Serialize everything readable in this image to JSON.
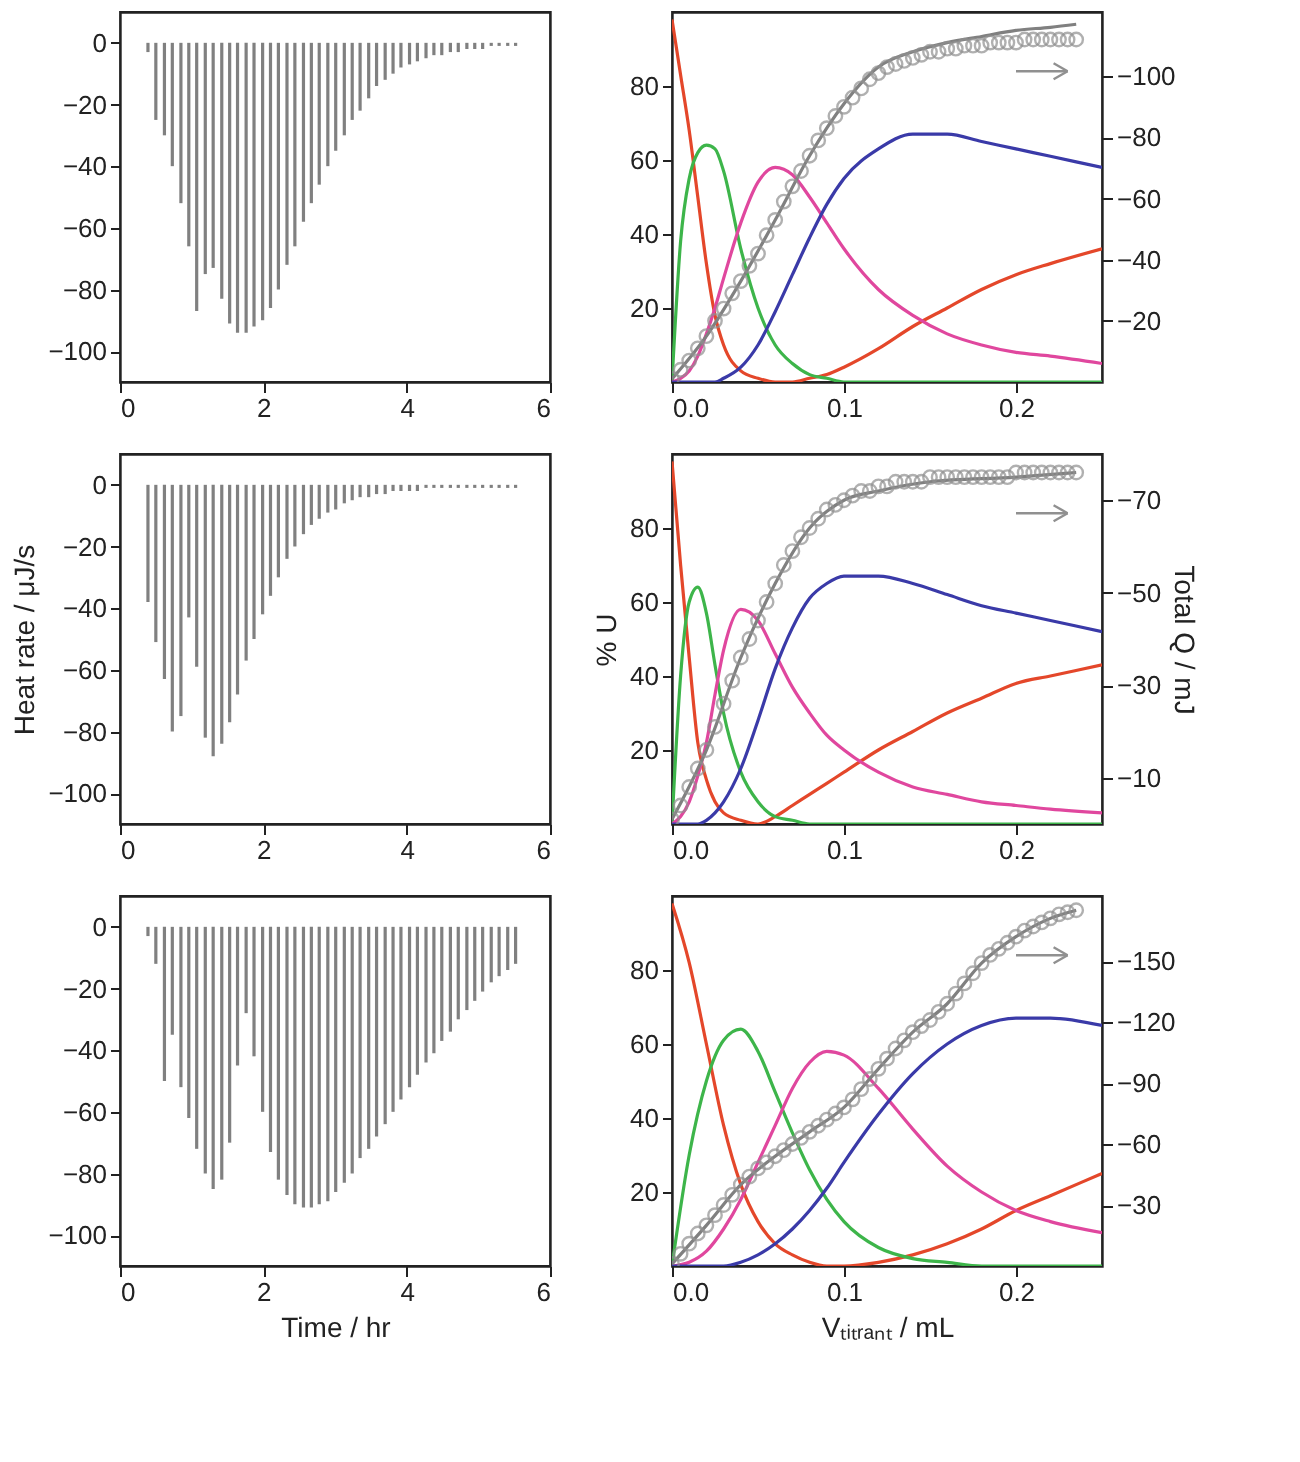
{
  "chart_data": [
    {
      "type": "bar",
      "color": "#808080",
      "xlim": [
        0,
        6
      ],
      "xticks": [
        0,
        2,
        4,
        6
      ],
      "ylim": [
        -110,
        10
      ],
      "yticks": [
        -100,
        -80,
        -60,
        -40,
        -20,
        0
      ],
      "x": [
        0.39,
        0.5,
        0.62,
        0.73,
        0.85,
        0.96,
        1.07,
        1.19,
        1.3,
        1.42,
        1.53,
        1.64,
        1.76,
        1.87,
        1.99,
        2.1,
        2.21,
        2.33,
        2.44,
        2.56,
        2.67,
        2.78,
        2.9,
        3.01,
        3.13,
        3.24,
        3.35,
        3.47,
        3.58,
        3.7,
        3.81,
        3.92,
        4.04,
        4.15,
        4.27,
        4.38,
        4.49,
        4.61,
        4.72,
        4.84,
        4.95,
        5.06,
        5.18,
        5.29,
        5.41,
        5.52
      ],
      "values": [
        -3,
        -25,
        -30,
        -40,
        -52,
        -66,
        -87,
        -75,
        -73,
        -83,
        -91,
        -94,
        -94,
        -92,
        -90,
        -86,
        -80,
        -72,
        -66,
        -58,
        -52,
        -46,
        -40,
        -35,
        -30,
        -25,
        -22,
        -18,
        -14,
        -12,
        -10,
        -8,
        -7,
        -6,
        -5,
        -4,
        -4,
        -3,
        -3,
        -2,
        -2,
        -2,
        -1,
        -1,
        -1,
        -1
      ]
    },
    {
      "type": "line",
      "xlim": [
        0,
        0.25
      ],
      "xticks": [
        {
          "value": 0,
          "label": "0.0"
        },
        {
          "value": 0.1,
          "label": "0.1"
        },
        {
          "value": 0.2,
          "label": "0.2"
        }
      ],
      "ylim": [
        0,
        100
      ],
      "yticks": [
        20,
        40,
        60,
        80
      ],
      "y2lim": [
        0,
        -121
      ],
      "y2ticks": [
        -20,
        -40,
        -60,
        -80,
        -100
      ],
      "x": [
        0,
        0.005,
        0.01,
        0.015,
        0.02,
        0.025,
        0.03,
        0.04,
        0.05,
        0.06,
        0.07,
        0.08,
        0.09,
        0.1,
        0.12,
        0.14,
        0.16,
        0.18,
        0.2,
        0.22,
        0.25
      ],
      "series": [
        {
          "color": "#e4472a",
          "values": [
            98,
            83,
            68,
            50,
            32,
            18,
            10,
            3,
            1,
            0,
            0,
            1,
            2,
            4,
            9,
            15,
            20,
            25,
            29,
            32,
            36
          ]
        },
        {
          "color": "#3db54a",
          "values": [
            0,
            38,
            55,
            62,
            64,
            63,
            57,
            36,
            20,
            10,
            5,
            2,
            1,
            0,
            0,
            0,
            0,
            0,
            0,
            0,
            0
          ]
        },
        {
          "color": "#e0479e",
          "values": [
            0,
            1,
            3,
            7,
            13,
            20,
            28,
            43,
            54,
            58,
            56,
            50,
            43,
            36,
            25,
            18,
            13,
            10,
            8,
            7,
            5
          ]
        },
        {
          "color": "#3a3aa8",
          "values": [
            0,
            0,
            0,
            0,
            0,
            0,
            1,
            4,
            10,
            19,
            29,
            39,
            48,
            55,
            63,
            67,
            67,
            65,
            63,
            61,
            58
          ]
        },
        {
          "type": "line",
          "axis": "y2",
          "color": "#808080",
          "x": [
            0,
            0.02,
            0.04,
            0.06,
            0.08,
            0.1,
            0.12,
            0.14,
            0.16,
            0.18,
            0.2,
            0.22,
            0.235
          ],
          "values": [
            -1,
            -15,
            -33,
            -53,
            -74,
            -91,
            -103,
            -108,
            -111,
            -113,
            -115,
            -116,
            -117
          ]
        },
        {
          "type": "scatter",
          "axis": "y2",
          "marker": "circle",
          "color": "#909090",
          "x": [
            0,
            0.005,
            0.01,
            0.015,
            0.02,
            0.025,
            0.03,
            0.035,
            0.04,
            0.045,
            0.05,
            0.055,
            0.06,
            0.065,
            0.07,
            0.075,
            0.08,
            0.085,
            0.09,
            0.095,
            0.1,
            0.105,
            0.11,
            0.115,
            0.12,
            0.125,
            0.13,
            0.135,
            0.14,
            0.145,
            0.15,
            0.155,
            0.16,
            0.165,
            0.17,
            0.175,
            0.18,
            0.185,
            0.19,
            0.195,
            0.2,
            0.205,
            0.21,
            0.215,
            0.22,
            0.225,
            0.23,
            0.235
          ],
          "values": [
            -1,
            -4,
            -7,
            -11,
            -15,
            -20,
            -24,
            -29,
            -33,
            -38,
            -42,
            -48,
            -53,
            -59,
            -64,
            -69,
            -74,
            -79,
            -83,
            -87,
            -90,
            -93,
            -96,
            -99,
            -101,
            -103,
            -104,
            -105,
            -106,
            -107,
            -108,
            -108,
            -109,
            -109,
            -110,
            -110,
            -110,
            -111,
            -111,
            -111,
            -111,
            -112,
            -112,
            -112,
            -112,
            -112,
            -112,
            -112
          ]
        }
      ]
    },
    {
      "type": "bar",
      "color": "#808080",
      "ylabel": "Heat rate / μJ/s",
      "xlim": [
        0,
        6
      ],
      "xticks": [
        0,
        2,
        4,
        6
      ],
      "ylim": [
        -110,
        10
      ],
      "yticks": [
        -100,
        -80,
        -60,
        -40,
        -20,
        0
      ],
      "x": [
        0.39,
        0.5,
        0.62,
        0.73,
        0.85,
        0.96,
        1.07,
        1.19,
        1.3,
        1.42,
        1.53,
        1.64,
        1.76,
        1.87,
        1.99,
        2.1,
        2.21,
        2.33,
        2.44,
        2.56,
        2.67,
        2.78,
        2.9,
        3.01,
        3.13,
        3.24,
        3.35,
        3.47,
        3.58,
        3.7,
        3.81,
        3.92,
        4.04,
        4.15,
        4.27,
        4.38,
        4.49,
        4.61,
        4.72,
        4.84,
        4.95,
        5.06,
        5.18,
        5.29,
        5.41,
        5.52
      ],
      "values": [
        -38,
        -51,
        -63,
        -80,
        -75,
        -43,
        -59,
        -82,
        -88,
        -84,
        -77,
        -68,
        -57,
        -50,
        -42,
        -36,
        -30,
        -24,
        -20,
        -16,
        -13,
        -11,
        -9,
        -8,
        -6,
        -5,
        -4,
        -4,
        -3,
        -3,
        -2,
        -2,
        -2,
        -2,
        -1,
        -1,
        -1,
        -1,
        -1,
        -1,
        -1,
        -1,
        -1,
        -1,
        -1,
        -1
      ]
    },
    {
      "type": "line",
      "ylabel": "% U",
      "y2label": "Total Q / mJ",
      "xlim": [
        0,
        0.25
      ],
      "xticks": [
        {
          "value": 0,
          "label": "0.0"
        },
        {
          "value": 0.1,
          "label": "0.1"
        },
        {
          "value": 0.2,
          "label": "0.2"
        }
      ],
      "ylim": [
        0,
        100
      ],
      "yticks": [
        20,
        40,
        60,
        80
      ],
      "y2lim": [
        0,
        -80
      ],
      "y2ticks": [
        -10,
        -30,
        -50,
        -70
      ],
      "x": [
        0,
        0.005,
        0.01,
        0.015,
        0.02,
        0.025,
        0.03,
        0.04,
        0.05,
        0.06,
        0.07,
        0.08,
        0.09,
        0.1,
        0.12,
        0.14,
        0.16,
        0.18,
        0.2,
        0.22,
        0.25
      ],
      "series": [
        {
          "color": "#e4472a",
          "values": [
            98,
            70,
            45,
            22,
            12,
            6,
            3,
            1,
            0,
            2,
            5,
            8,
            11,
            14,
            20,
            25,
            30,
            34,
            38,
            40,
            43
          ]
        },
        {
          "color": "#3db54a",
          "values": [
            0,
            40,
            60,
            64,
            57,
            43,
            30,
            14,
            6,
            2,
            1,
            0,
            0,
            0,
            0,
            0,
            0,
            0,
            0,
            0,
            0
          ]
        },
        {
          "color": "#e0479e",
          "values": [
            0,
            2,
            6,
            13,
            22,
            35,
            47,
            58,
            55,
            46,
            37,
            30,
            24,
            20,
            14,
            10,
            8,
            6,
            5,
            4,
            3
          ]
        },
        {
          "color": "#3a3aa8",
          "values": [
            0,
            0,
            0,
            0,
            1,
            3,
            6,
            15,
            28,
            42,
            53,
            61,
            65,
            67,
            67,
            65,
            62,
            59,
            57,
            55,
            52
          ]
        },
        {
          "type": "line",
          "axis": "y2",
          "color": "#808080",
          "x": [
            0,
            0.02,
            0.04,
            0.06,
            0.08,
            0.1,
            0.12,
            0.15,
            0.2,
            0.235
          ],
          "values": [
            -1,
            -16,
            -36,
            -52,
            -64,
            -70,
            -72,
            -74,
            -75,
            -76
          ]
        },
        {
          "type": "scatter",
          "axis": "y2",
          "marker": "circle",
          "color": "#909090",
          "x": [
            0,
            0.005,
            0.01,
            0.015,
            0.02,
            0.025,
            0.03,
            0.035,
            0.04,
            0.045,
            0.05,
            0.055,
            0.06,
            0.065,
            0.07,
            0.075,
            0.08,
            0.085,
            0.09,
            0.095,
            0.1,
            0.105,
            0.11,
            0.115,
            0.12,
            0.125,
            0.13,
            0.135,
            0.14,
            0.145,
            0.15,
            0.155,
            0.16,
            0.165,
            0.17,
            0.175,
            0.18,
            0.185,
            0.19,
            0.195,
            0.2,
            0.205,
            0.21,
            0.215,
            0.22,
            0.225,
            0.23,
            0.235
          ],
          "values": [
            -1,
            -4,
            -8,
            -12,
            -16,
            -21,
            -26,
            -31,
            -36,
            -40,
            -44,
            -48,
            -52,
            -56,
            -59,
            -62,
            -64,
            -66,
            -68,
            -69,
            -70,
            -71,
            -72,
            -72,
            -73,
            -73,
            -74,
            -74,
            -74,
            -74,
            -75,
            -75,
            -75,
            -75,
            -75,
            -75,
            -75,
            -75,
            -75,
            -75,
            -76,
            -76,
            -76,
            -76,
            -76,
            -76,
            -76,
            -76
          ]
        }
      ]
    },
    {
      "type": "bar",
      "color": "#808080",
      "xlabel": "Time / hr",
      "xlim": [
        0,
        6
      ],
      "xticks": [
        0,
        2,
        4,
        6
      ],
      "ylim": [
        -110,
        10
      ],
      "yticks": [
        -100,
        -80,
        -60,
        -40,
        -20,
        0
      ],
      "x": [
        0.39,
        0.5,
        0.62,
        0.73,
        0.85,
        0.96,
        1.07,
        1.19,
        1.3,
        1.42,
        1.53,
        1.64,
        1.76,
        1.87,
        1.99,
        2.1,
        2.21,
        2.33,
        2.44,
        2.56,
        2.67,
        2.78,
        2.9,
        3.01,
        3.13,
        3.24,
        3.35,
        3.47,
        3.58,
        3.7,
        3.81,
        3.92,
        4.04,
        4.15,
        4.27,
        4.38,
        4.49,
        4.61,
        4.72,
        4.84,
        4.95,
        5.06,
        5.18,
        5.29,
        5.41,
        5.52
      ],
      "values": [
        -3,
        -12,
        -50,
        -35,
        -52,
        -62,
        -72,
        -80,
        -85,
        -82,
        -70,
        -45,
        -28,
        -42,
        -60,
        -73,
        -82,
        -87,
        -90,
        -91,
        -91,
        -90,
        -89,
        -86,
        -83,
        -80,
        -75,
        -72,
        -68,
        -64,
        -60,
        -56,
        -52,
        -48,
        -44,
        -41,
        -37,
        -34,
        -30,
        -27,
        -24,
        -21,
        -18,
        -16,
        -14,
        -12
      ]
    },
    {
      "type": "line",
      "xlabel": "Vₜᵢₜᵣₐₙₜ / mL",
      "xlim": [
        0,
        0.25
      ],
      "xticks": [
        {
          "value": 0,
          "label": "0.0"
        },
        {
          "value": 0.1,
          "label": "0.1"
        },
        {
          "value": 0.2,
          "label": "0.2"
        }
      ],
      "ylim": [
        0,
        100
      ],
      "yticks": [
        20,
        40,
        60,
        80
      ],
      "y2lim": [
        0,
        -182
      ],
      "y2ticks": [
        -30,
        -60,
        -90,
        -120,
        -150
      ],
      "x": [
        0,
        0.01,
        0.02,
        0.03,
        0.04,
        0.05,
        0.06,
        0.07,
        0.08,
        0.09,
        0.1,
        0.12,
        0.14,
        0.16,
        0.18,
        0.2,
        0.22,
        0.25
      ],
      "series": [
        {
          "color": "#e4472a",
          "values": [
            98,
            82,
            60,
            38,
            22,
            12,
            6,
            3,
            1,
            0,
            0,
            1,
            3,
            6,
            10,
            15,
            19,
            25
          ]
        },
        {
          "color": "#3db54a",
          "values": [
            0,
            30,
            50,
            61,
            64,
            58,
            47,
            36,
            26,
            18,
            12,
            5,
            2,
            1,
            0,
            0,
            0,
            0
          ]
        },
        {
          "color": "#e0479e",
          "values": [
            0,
            1,
            4,
            10,
            18,
            28,
            38,
            48,
            55,
            58,
            57,
            48,
            37,
            27,
            20,
            15,
            12,
            9
          ]
        },
        {
          "color": "#3a3aa8",
          "values": [
            0,
            0,
            0,
            0,
            1,
            3,
            6,
            10,
            15,
            21,
            28,
            41,
            52,
            60,
            65,
            67,
            67,
            65
          ]
        },
        {
          "type": "line",
          "axis": "y2",
          "color": "#808080",
          "x": [
            0,
            0.02,
            0.04,
            0.06,
            0.08,
            0.1,
            0.12,
            0.14,
            0.16,
            0.18,
            0.2,
            0.22,
            0.235
          ],
          "values": [
            -1,
            -20,
            -40,
            -54,
            -66,
            -78,
            -97,
            -115,
            -129,
            -149,
            -162,
            -171,
            -175
          ]
        },
        {
          "type": "scatter",
          "axis": "y2",
          "marker": "circle",
          "color": "#909090",
          "x": [
            0,
            0.005,
            0.01,
            0.015,
            0.02,
            0.025,
            0.03,
            0.035,
            0.04,
            0.045,
            0.05,
            0.055,
            0.06,
            0.065,
            0.07,
            0.075,
            0.08,
            0.085,
            0.09,
            0.095,
            0.1,
            0.105,
            0.11,
            0.115,
            0.12,
            0.125,
            0.13,
            0.135,
            0.14,
            0.145,
            0.15,
            0.155,
            0.16,
            0.165,
            0.17,
            0.175,
            0.18,
            0.185,
            0.19,
            0.195,
            0.2,
            0.205,
            0.21,
            0.215,
            0.22,
            0.225,
            0.23,
            0.235
          ],
          "values": [
            -1,
            -6,
            -11,
            -16,
            -20,
            -25,
            -30,
            -35,
            -40,
            -44,
            -48,
            -51,
            -54,
            -57,
            -60,
            -63,
            -66,
            -69,
            -72,
            -75,
            -78,
            -82,
            -87,
            -92,
            -97,
            -102,
            -107,
            -111,
            -115,
            -118,
            -121,
            -125,
            -129,
            -134,
            -139,
            -144,
            -149,
            -153,
            -156,
            -159,
            -162,
            -165,
            -167,
            -169,
            -171,
            -173,
            -174,
            -175
          ]
        }
      ]
    }
  ]
}
